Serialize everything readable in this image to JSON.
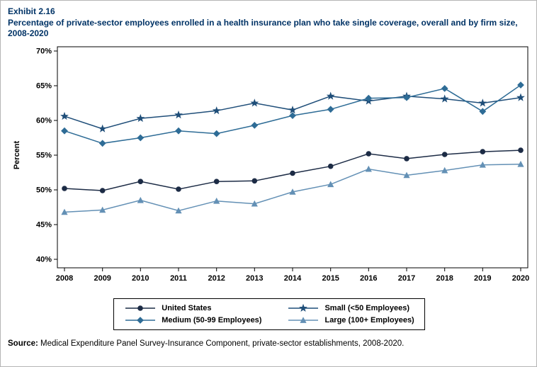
{
  "header": {
    "exhibit": "Exhibit 2.16",
    "title": "Percentage of private-sector employees enrolled in a health insurance plan who take single coverage, overall and by firm size, 2008-2020"
  },
  "source": {
    "label": "Source:",
    "text": " Medical Expenditure Panel Survey-Insurance Component, private-sector establishments, 2008-2020."
  },
  "chart_data": {
    "type": "line",
    "title": "Percentage of private-sector employees enrolled in a health insurance plan who take single coverage, overall and by firm size, 2008-2020",
    "xlabel": "",
    "ylabel": "Percent",
    "ylim": [
      40,
      70
    ],
    "yticks": [
      40,
      45,
      50,
      55,
      60,
      65,
      70
    ],
    "grid": false,
    "legend_position": "bottom",
    "categories": [
      2008,
      2009,
      2010,
      2011,
      2012,
      2013,
      2014,
      2015,
      2016,
      2017,
      2018,
      2019,
      2020
    ],
    "series": [
      {
        "name": "United States",
        "marker": "circle",
        "color": "#1c2b45",
        "values": [
          50.2,
          49.9,
          51.2,
          50.1,
          51.2,
          51.3,
          52.4,
          53.4,
          55.2,
          54.5,
          55.1,
          55.5,
          55.7
        ]
      },
      {
        "name": "Small (<50 Employees)",
        "marker": "star",
        "color": "#1f4e79",
        "values": [
          60.6,
          58.8,
          60.3,
          60.8,
          61.4,
          62.5,
          61.5,
          63.5,
          62.8,
          63.5,
          63.1,
          62.5,
          63.3
        ]
      },
      {
        "name": "Medium (50-99 Employees)",
        "marker": "diamond",
        "color": "#2e6c96",
        "values": [
          58.5,
          56.7,
          57.5,
          58.5,
          58.1,
          59.3,
          60.7,
          61.6,
          63.2,
          63.3,
          64.6,
          61.3,
          65.1
        ]
      },
      {
        "name": "Large (100+ Employees)",
        "marker": "triangle",
        "color": "#6390b5",
        "values": [
          46.8,
          47.1,
          48.5,
          47.0,
          48.4,
          48.0,
          49.7,
          50.8,
          53.0,
          52.1,
          52.8,
          53.6,
          53.7
        ]
      }
    ]
  }
}
